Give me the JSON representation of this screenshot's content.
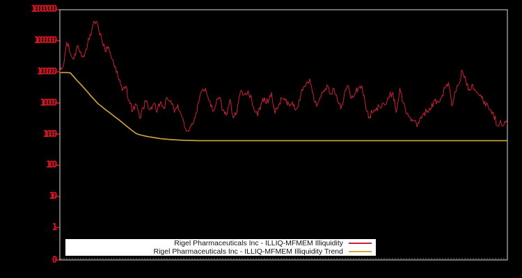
{
  "colors": {
    "background": "#000000",
    "frame": "#dcdcdc",
    "red_series": "#cc2036",
    "trend_series": "#d2a93a",
    "tick_label": "#dd1624",
    "minor_tick": "#9a9a9a",
    "legend_bg": "#ffffff",
    "legend_text": "#111111"
  },
  "legend": {
    "entries": [
      {
        "label": "Rigel Pharmaceuticals Inc - ILLIQ-MFMEM Illiquidity",
        "series": "illiquidity"
      },
      {
        "label": "Rigel Pharmaceuticals Inc - ILLIQ-MFMEM Illiquidity Trend",
        "series": "trend"
      }
    ]
  },
  "chart_data": {
    "type": "line",
    "title": "",
    "xlabel": "",
    "ylabel": "",
    "grid": false,
    "legend_position": "bottom-center",
    "y_axis": {
      "scale": "log",
      "tick_labels": [
        "10000000",
        "1000000",
        "100000",
        "10000",
        "1000",
        "100",
        "10",
        "1",
        "0"
      ],
      "tick_values": [
        10000000,
        1000000,
        100000,
        10000,
        1000,
        100,
        10,
        1,
        0
      ],
      "ylim_top": 10000000
    },
    "x_axis": {
      "tick_labels": []
    },
    "noise_log10": 0.12,
    "series": [
      {
        "name": "Rigel Pharmaceuticals Inc - ILLIQ-MFMEM Illiquidity",
        "color_key": "red_series",
        "values": [
          95000,
          150000,
          900000,
          400000,
          250000,
          700000,
          450000,
          300000,
          800000,
          1500000,
          4200000,
          3000000,
          1200000,
          500000,
          650000,
          260000,
          150000,
          55000,
          25000,
          35000,
          12000,
          5500,
          9000,
          3300,
          7000,
          12000,
          6000,
          9000,
          5000,
          11000,
          6500,
          14000,
          12000,
          5000,
          9000,
          4000,
          1600,
          1300,
          2200,
          3300,
          10000,
          25000,
          30000,
          12000,
          5500,
          9000,
          15000,
          6000,
          4000,
          13000,
          3300,
          5000,
          22000,
          18000,
          20000,
          18000,
          6000,
          3800,
          9000,
          15000,
          10000,
          22000,
          4600,
          8000,
          14000,
          12000,
          9000,
          11000,
          6000,
          13000,
          25000,
          40000,
          60000,
          20000,
          7800,
          15000,
          25000,
          38000,
          20000,
          30000,
          12000,
          6400,
          20000,
          36000,
          14000,
          20000,
          30000,
          36000,
          10000,
          3300,
          5000,
          5500,
          8000,
          10000,
          9000,
          16000,
          22000,
          5000,
          30000,
          10000,
          4500,
          3500,
          2600,
          1700,
          3500,
          4900,
          5500,
          6500,
          12000,
          11000,
          15000,
          30000,
          45000,
          8000,
          23000,
          40000,
          110000,
          55000,
          28000,
          40000,
          24000,
          17000,
          12000,
          10000,
          6000,
          4600,
          1900,
          2800,
          2000,
          2200
        ]
      },
      {
        "name": "Rigel Pharmaceuticals Inc - ILLIQ-MFMEM Illiquidity Trend",
        "color_key": "trend_series",
        "values": [
          95000,
          95000,
          95000,
          93000,
          70000,
          52000,
          40000,
          30000,
          22400,
          16600,
          12600,
          9500,
          7800,
          6300,
          5200,
          4300,
          3500,
          2900,
          2350,
          1900,
          1550,
          1260,
          1050,
          955,
          900,
          850,
          810,
          780,
          745,
          715,
          700,
          685,
          670,
          658,
          649,
          640,
          634,
          628,
          624,
          621,
          618,
          617,
          617,
          617,
          617,
          617,
          617,
          617,
          617,
          617,
          617,
          617,
          617,
          617,
          617,
          617,
          617,
          617,
          617,
          617,
          617,
          617,
          617,
          617,
          617,
          617,
          617,
          617,
          617,
          617,
          617,
          617,
          617,
          617,
          617,
          617,
          617,
          617,
          617,
          617,
          617,
          617,
          617,
          617,
          617,
          617,
          617,
          617,
          617,
          617,
          617,
          617,
          617,
          617,
          617,
          617,
          617,
          617,
          617,
          617,
          617,
          617,
          617,
          617,
          617,
          617,
          617,
          617,
          617,
          617,
          617,
          617,
          617,
          617,
          617,
          617,
          617,
          617,
          617,
          617,
          617,
          617,
          617,
          617,
          617,
          617,
          617,
          617,
          617,
          617
        ]
      }
    ]
  }
}
